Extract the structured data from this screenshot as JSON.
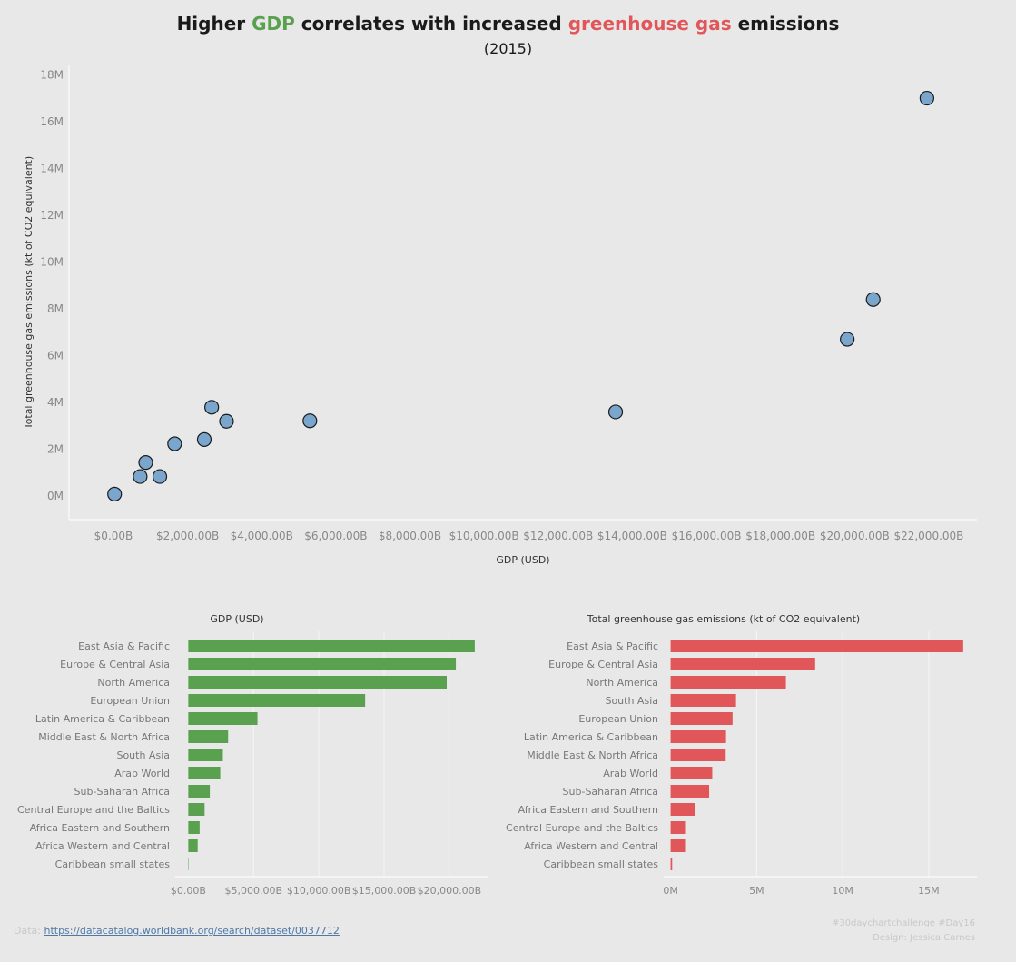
{
  "title": {
    "part1": "Higher ",
    "gdp_word": "GDP",
    "part2": " correlates with increased ",
    "ghg_word": "greenhouse gas",
    "part3": " emissions"
  },
  "subtitle": "(2015)",
  "colors": {
    "gdp": "#59a14f",
    "ghg": "#e15759",
    "point": "#7aa6cd",
    "background": "#e8e8e8",
    "axis_text": "#888888"
  },
  "chart_data": [
    {
      "type": "scatter",
      "xlabel": "GDP (USD)",
      "ylabel": "Total greenhouse gas emissions (kt of CO2 equivalent)",
      "xlim": [
        -1200,
        23300
      ],
      "ylim": [
        -1000000,
        18400000
      ],
      "x_ticks": [
        0,
        2000,
        4000,
        6000,
        8000,
        10000,
        12000,
        14000,
        16000,
        18000,
        20000,
        22000
      ],
      "x_tick_labels": [
        "$0.00B",
        "$2,000.00B",
        "$4,000.00B",
        "$6,000.00B",
        "$8,000.00B",
        "$10,000.00B",
        "$12,000.00B",
        "$14,000.00B",
        "$16,000.00B",
        "$18,000.00B",
        "$20,000.00B",
        "$22,000.00B"
      ],
      "y_ticks": [
        0,
        2000000,
        4000000,
        6000000,
        8000000,
        10000000,
        12000000,
        14000000,
        16000000,
        18000000
      ],
      "y_tick_labels": [
        "0M",
        "2M",
        "4M",
        "6M",
        "8M",
        "10M",
        "12M",
        "14M",
        "16M",
        "18M"
      ],
      "grid": false,
      "points": [
        {
          "x": 21950,
          "y": 17000000
        },
        {
          "x": 20500,
          "y": 8400000
        },
        {
          "x": 19800,
          "y": 6700000
        },
        {
          "x": 13550,
          "y": 3600000
        },
        {
          "x": 5300,
          "y": 3220000
        },
        {
          "x": 3050,
          "y": 3200000
        },
        {
          "x": 2650,
          "y": 3800000
        },
        {
          "x": 2450,
          "y": 2420000
        },
        {
          "x": 1650,
          "y": 2240000
        },
        {
          "x": 870,
          "y": 1440000
        },
        {
          "x": 1250,
          "y": 840000
        },
        {
          "x": 720,
          "y": 840000
        },
        {
          "x": 30,
          "y": 90000
        }
      ]
    },
    {
      "type": "bar",
      "title": "GDP (USD)",
      "orientation": "horizontal",
      "categories": [
        "East Asia & Pacific",
        "Europe & Central Asia",
        "North America",
        "European Union",
        "Latin America & Caribbean",
        "Middle East & North Africa",
        "South Asia",
        "Arab World",
        "Sub-Saharan Africa",
        "Central Europe and the Baltics",
        "Africa Eastern and Southern",
        "Africa Western and Central",
        "Caribbean small states"
      ],
      "values": [
        21950,
        20500,
        19800,
        13550,
        5300,
        3050,
        2650,
        2450,
        1650,
        1250,
        870,
        720,
        30
      ],
      "xlim": [
        -1000,
        23000
      ],
      "x_ticks": [
        0,
        5000,
        10000,
        15000,
        20000
      ],
      "x_tick_labels": [
        "$0.00B",
        "$5,000.00B",
        "$10,000.00B",
        "$15,000.00B",
        "$20,000.00B"
      ],
      "grid": true
    },
    {
      "type": "bar",
      "title": "Total greenhouse gas emissions (kt of CO2 equivalent)",
      "orientation": "horizontal",
      "categories": [
        "East Asia & Pacific",
        "Europe & Central Asia",
        "North America",
        "South Asia",
        "European Union",
        "Latin America & Caribbean",
        "Middle East & North Africa",
        "Arab World",
        "Sub-Saharan Africa",
        "Africa Eastern and Southern",
        "Central Europe and the Baltics",
        "Africa Western and Central",
        "Caribbean small states"
      ],
      "values": [
        17000000,
        8400000,
        6700000,
        3800000,
        3600000,
        3220000,
        3200000,
        2420000,
        2240000,
        1440000,
        840000,
        840000,
        90000
      ],
      "xlim": [
        -400000,
        17800000
      ],
      "x_ticks": [
        0,
        5000000,
        10000000,
        15000000
      ],
      "x_tick_labels": [
        "0M",
        "5M",
        "10M",
        "15M"
      ],
      "grid": true
    }
  ],
  "footer": {
    "data_label": "Data: ",
    "data_link": "https://datacatalog.worldbank.org/search/dataset/0037712",
    "hashtags": "#30daychartchallenge #Day16",
    "credit": "Design: Jessica Carnes"
  }
}
